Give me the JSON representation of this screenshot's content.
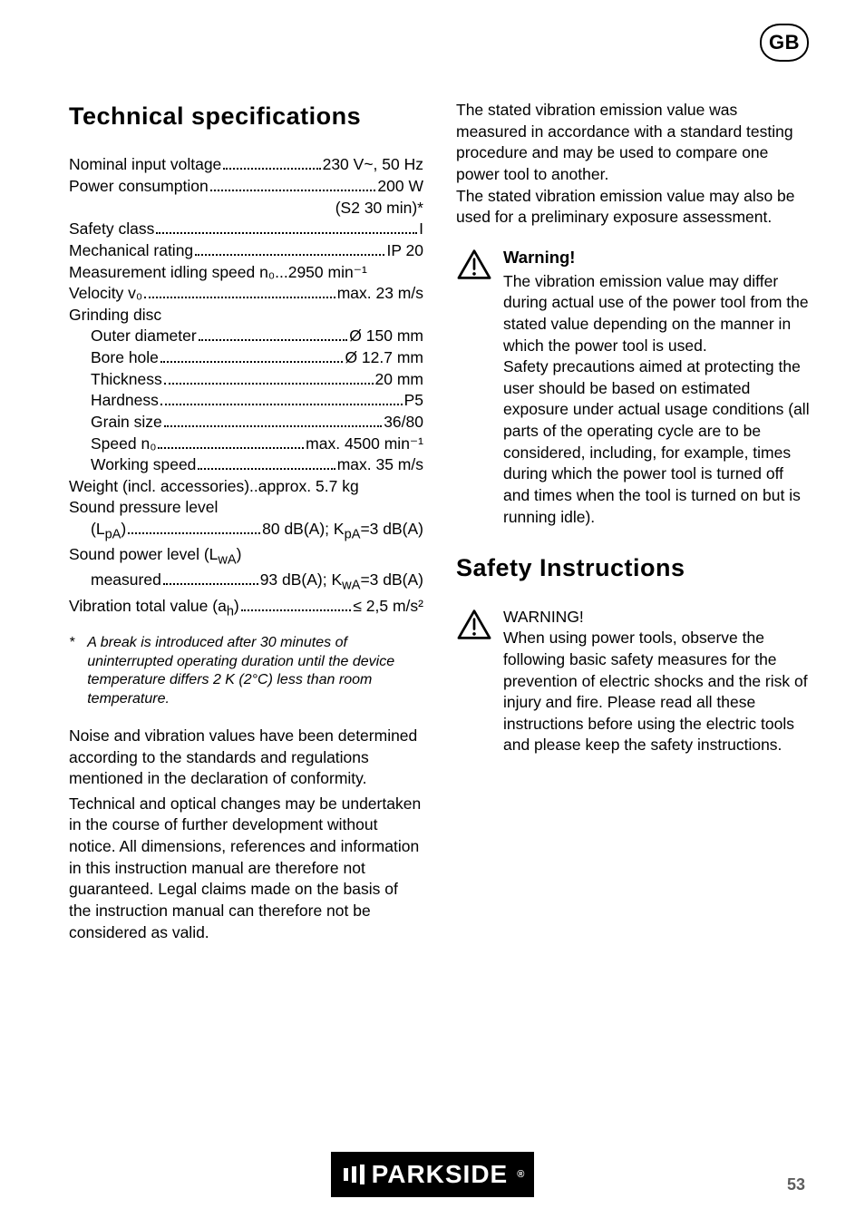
{
  "badge": "GB",
  "left": {
    "heading": "Technical specifications",
    "specs": [
      {
        "label": "Nominal input voltage",
        "value": "230 V~, 50 Hz",
        "indent": 0
      },
      {
        "label": "Power consumption",
        "value": "200 W",
        "indent": 0
      },
      {
        "label": "",
        "value": "(S2 30 min)*",
        "indent": 0,
        "rightOnly": true
      },
      {
        "label": "Safety class",
        "value": "I",
        "indent": 0
      },
      {
        "label": "Mechanical rating",
        "value": "IP 20",
        "indent": 0
      },
      {
        "label": "Measurement idling speed n₀",
        "value": "2950 min⁻¹",
        "indent": 0,
        "nodots": true,
        "gap": "... "
      },
      {
        "label": "Velocity v₀",
        "value": "max. 23 m/s",
        "indent": 0
      },
      {
        "label": "Grinding disc",
        "value": "",
        "indent": 0,
        "nolabel": false,
        "novalue": true
      },
      {
        "label": "Outer diameter",
        "value": "Ø 150 mm",
        "indent": 1
      },
      {
        "label": "Bore hole",
        "value": "Ø 12.7 mm",
        "indent": 1
      },
      {
        "label": "Thickness",
        "value": "20 mm",
        "indent": 1
      },
      {
        "label": "Hardness",
        "value": "P5",
        "indent": 1
      },
      {
        "label": "Grain size",
        "value": "36/80",
        "indent": 1
      },
      {
        "label": "Speed n₀",
        "value": "max. 4500 min⁻¹",
        "indent": 1
      },
      {
        "label": "Working speed",
        "value": "max. 35 m/s",
        "indent": 1
      },
      {
        "label": "Weight (incl. accessories)",
        "value": "approx. 5.7 kg",
        "indent": 0,
        "nodots": true,
        "gap": ".. "
      },
      {
        "label": "Sound pressure level",
        "value": "",
        "indent": 0,
        "novalue": true
      }
    ],
    "spl_line": {
      "pre": "(L",
      "sub1": "pA",
      "mid": ")",
      "val": "80 dB(A); K",
      "sub2": "pA",
      "tail": "=3 dB(A)"
    },
    "spwl_label": {
      "pre": "Sound power level (L",
      "sub": "wA",
      "post": ")"
    },
    "measured": {
      "pre": "measured",
      "val": "93 dB(A); K",
      "sub": "wA",
      "tail": "=3 dB(A)"
    },
    "vib": {
      "pre": "Vibration total value (a",
      "sub": "h",
      "mid": ")",
      "val": "≤ 2,5 m/s²"
    },
    "footnote": {
      "mark": "*",
      "text": "A break is introduced after 30 minutes of uninterrupted operating duration until the device temperature differs 2 K (2°C) less than room temperature."
    },
    "p1": "Noise and vibration values have been determined according to the standards and regulations mentioned in the declaration of conformity.",
    "p2": "Technical and optical changes may be undertaken in the course of further development without notice. All dimensions, references and information in this instruction manual are therefore not guaranteed. Legal claims made on the basis of the instruction manual can therefore not be considered as valid."
  },
  "right": {
    "intro": "The stated vibration emission value was measured in accordance with a standard testing procedure and may be used to compare one power tool to another.\nThe stated vibration emission value may also be used for a preliminary exposure assessment.",
    "warn1": {
      "title": "Warning!",
      "body": "The vibration emission value may differ during actual use of the power tool from the stated value depending on the manner in which the power tool is used.\nSafety precautions aimed at protecting the user should be based on estimated exposure under actual usage conditions (all parts of the operating cycle are to be considered, including, for example, times during which the power tool is turned off and times when the tool is turned on but is running idle)."
    },
    "heading2": "Safety Instructions",
    "warn2": {
      "title": "WARNING!",
      "body": "When using power tools, observe the following basic safety measures for the prevention of electric shocks and the risk of injury and fire. Please read all these instructions before using the electric tools and please keep the safety instructions."
    }
  },
  "logo": "PARKSIDE",
  "pageNum": "53"
}
